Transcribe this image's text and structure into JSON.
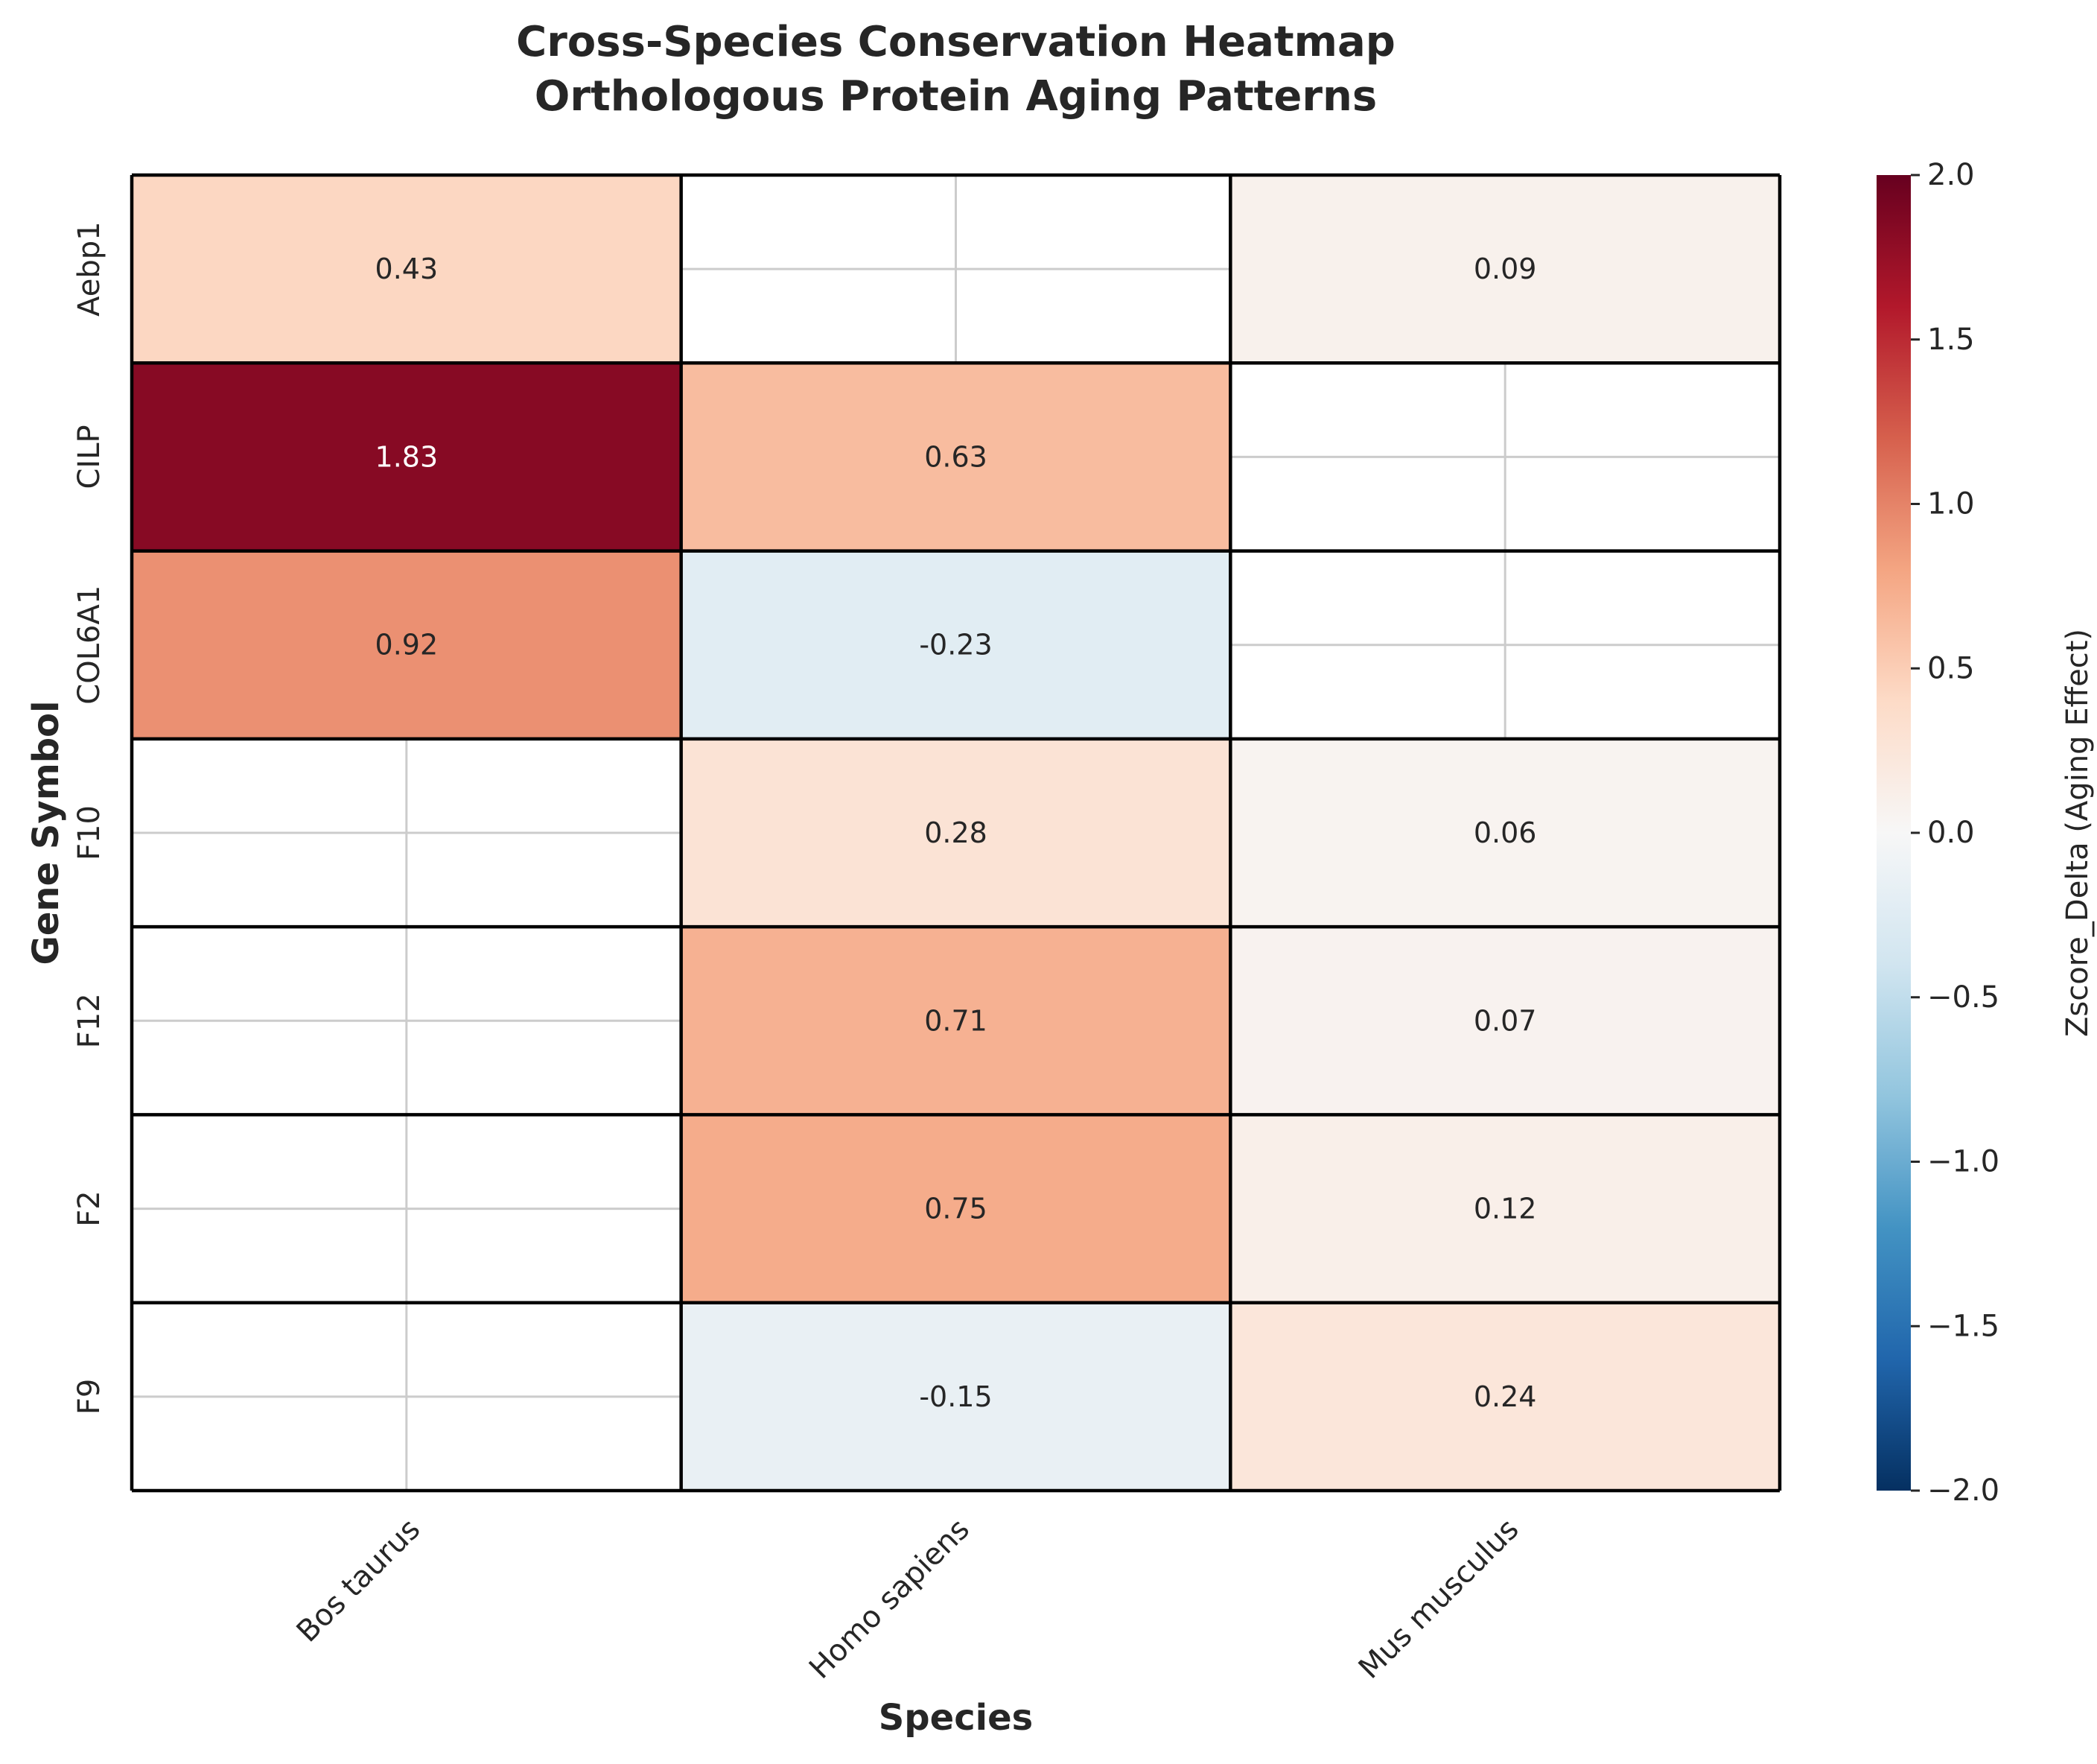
{
  "chart_data": {
    "type": "heatmap",
    "title": "Cross-Species Conservation Heatmap",
    "subtitle": "Orthologous Protein Aging Patterns",
    "xlabel": "Species",
    "ylabel": "Gene Symbol",
    "x_categories": [
      "Bos taurus",
      "Homo sapiens",
      "Mus musculus"
    ],
    "y_categories": [
      "Aebp1",
      "CILP",
      "COL6A1",
      "F10",
      "F12",
      "F2",
      "F9"
    ],
    "values": [
      [
        0.43,
        null,
        0.09
      ],
      [
        1.83,
        0.63,
        null
      ],
      [
        0.92,
        -0.23,
        null
      ],
      [
        null,
        0.28,
        0.06
      ],
      [
        null,
        0.71,
        0.07
      ],
      [
        null,
        0.75,
        0.12
      ],
      [
        null,
        -0.15,
        0.24
      ]
    ],
    "annotations": [
      [
        "0.43",
        "",
        "0.09"
      ],
      [
        "1.83",
        "0.63",
        ""
      ],
      [
        "0.92",
        "-0.23",
        ""
      ],
      [
        "",
        "0.28",
        "0.06"
      ],
      [
        "",
        "0.71",
        "0.07"
      ],
      [
        "",
        "0.75",
        "0.12"
      ],
      [
        "",
        "-0.15",
        "0.24"
      ]
    ],
    "colormap": "RdBu_r",
    "vmin": -2.0,
    "vmax": 2.0,
    "colorbar": {
      "label": "Zscore_Delta (Aging Effect)",
      "ticks": [
        2.0,
        1.5,
        1.0,
        0.5,
        0.0,
        -0.5,
        -1.0,
        -1.5,
        -2.0
      ],
      "tick_labels": [
        "2.0",
        "1.5",
        "1.0",
        "0.5",
        "0.0",
        "−0.5",
        "−1.0",
        "−1.5",
        "−2.0"
      ]
    },
    "grid": true,
    "missing_cells": "blank"
  }
}
